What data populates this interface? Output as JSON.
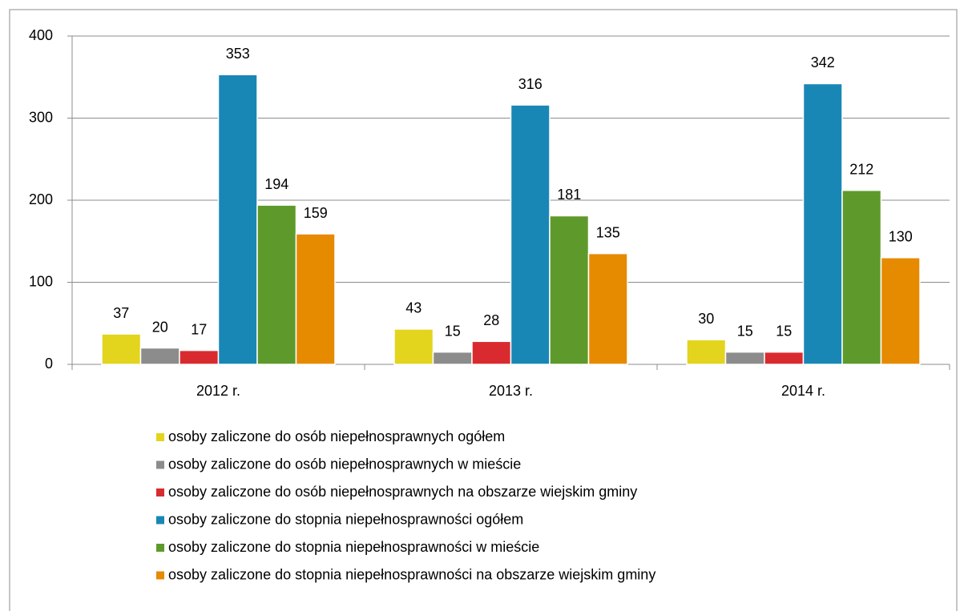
{
  "chart_data": {
    "type": "bar",
    "categories": [
      "2012 r.",
      "2013 r.",
      "2014 r."
    ],
    "series": [
      {
        "name": "osoby zaliczone do osób niepełnosprawnych ogółem",
        "color": "#e3d41e",
        "values": [
          37,
          43,
          30
        ]
      },
      {
        "name": "osoby zaliczone do osób niepełnosprawnych w mieście",
        "color": "#8c8c8c",
        "values": [
          20,
          15,
          15
        ]
      },
      {
        "name": "osoby zaliczone do osób niepełnosprawnych na obszarze wiejskim gminy",
        "color": "#d92b2f",
        "values": [
          17,
          28,
          15
        ]
      },
      {
        "name": "osoby zaliczone do stopnia niepełnosprawności ogółem",
        "color": "#1987b5",
        "values": [
          353,
          316,
          342
        ]
      },
      {
        "name": "osoby zaliczone do stopnia niepełnosprawności w mieście",
        "color": "#5e9a2b",
        "values": [
          194,
          181,
          212
        ]
      },
      {
        "name": "osoby zaliczone do stopnia niepełnosprawności na obszarze wiejskim gminy",
        "color": "#e68a00",
        "values": [
          159,
          135,
          130
        ]
      }
    ],
    "ylim": [
      0,
      400
    ],
    "yticks": [
      0,
      100,
      200,
      300,
      400
    ],
    "grid": true,
    "legend": "bottom"
  }
}
